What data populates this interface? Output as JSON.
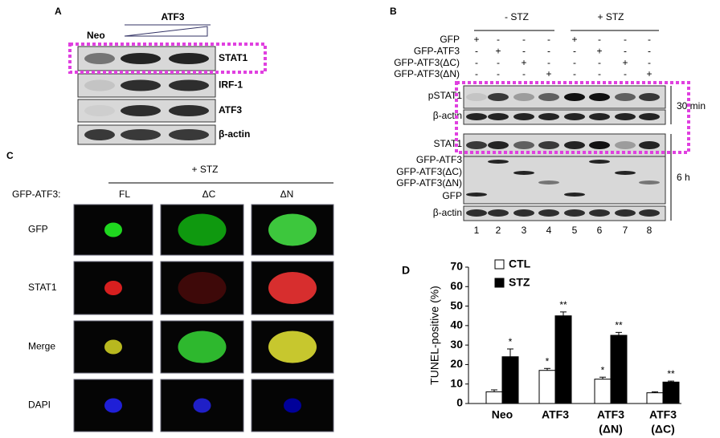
{
  "panel_a": {
    "letter": "A",
    "group": "ATF3",
    "control": "Neo",
    "rows": [
      "STAT1",
      "IRF-1",
      "ATF3",
      "β-actin"
    ]
  },
  "panel_b": {
    "letter": "B",
    "groups": [
      "- STZ",
      "+ STZ"
    ],
    "constructs": [
      "GFP",
      "GFP-ATF3",
      "GFP-ATF3(ΔC)",
      "GFP-ATF3(ΔN)"
    ],
    "signs": [
      [
        "+",
        "-",
        "-",
        "-",
        "+",
        "-",
        "-",
        "-"
      ],
      [
        "-",
        "+",
        "-",
        "-",
        "-",
        "+",
        "-",
        "-"
      ],
      [
        "-",
        "-",
        "+",
        "-",
        "-",
        "-",
        "+",
        "-"
      ],
      [
        "-",
        "-",
        "-",
        "+",
        "-",
        "-",
        "-",
        "+"
      ]
    ],
    "blot_labels": [
      "pSTAT1",
      "β-actin",
      "STAT1",
      "GFP-ATF3",
      "GFP-ATF3(ΔC)",
      "GFP-ATF3(ΔN)",
      "GFP",
      "β-actin"
    ],
    "times": [
      "30 min",
      "6 h"
    ],
    "lanes": [
      "1",
      "2",
      "3",
      "4",
      "5",
      "6",
      "7",
      "8"
    ]
  },
  "panel_c": {
    "letter": "C",
    "treatment": "+ STZ",
    "construct_label": "GFP-ATF3:",
    "columns": [
      "FL",
      "ΔC",
      "ΔN"
    ],
    "rows": [
      "GFP",
      "STAT1",
      "Merge",
      "DAPI"
    ]
  },
  "panel_d": {
    "letter": "D"
  },
  "chart_data": {
    "type": "bar",
    "y_label": "TUNEL-positive (%)",
    "categories": [
      [
        "Neo"
      ],
      [
        "ATF3"
      ],
      [
        "ATF3",
        "(ΔN)"
      ],
      [
        "ATF3",
        "(ΔC)"
      ]
    ],
    "series": [
      {
        "name": "CTL",
        "color": "#ffffff",
        "values": [
          6,
          17,
          12.5,
          5.5
        ],
        "errors": [
          1,
          1,
          1,
          0.5
        ],
        "annotations": [
          null,
          "*",
          "*",
          null
        ]
      },
      {
        "name": "STZ",
        "color": "#000000",
        "values": [
          24,
          45,
          35,
          11
        ],
        "errors": [
          4,
          2,
          1.5,
          0.5
        ],
        "annotations": [
          "*",
          "**",
          "**",
          "**"
        ]
      }
    ],
    "ylim": [
      0,
      70
    ],
    "yticks": [
      0,
      10,
      20,
      30,
      40,
      50,
      60,
      70
    ]
  }
}
